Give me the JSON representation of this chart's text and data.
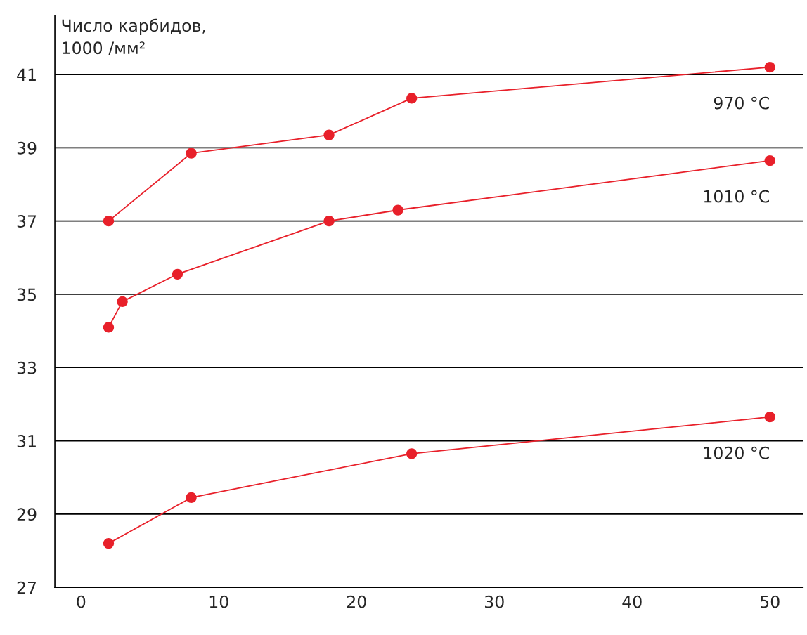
{
  "chart_data": {
    "type": "line",
    "ylabel": "Число карбидов,\n1000 /мм²",
    "series": [
      {
        "name": "970 °C",
        "color": "#e8202a",
        "x": [
          2,
          8,
          18,
          24,
          50
        ],
        "values": [
          37.0,
          38.85,
          39.35,
          40.35,
          41.2
        ]
      },
      {
        "name": "1010 °C",
        "color": "#e8202a",
        "x": [
          2,
          3,
          7,
          18,
          23,
          50
        ],
        "values": [
          34.1,
          34.8,
          35.55,
          37.0,
          37.3,
          38.65
        ]
      },
      {
        "name": "1020 °C",
        "color": "#e8202a",
        "x": [
          2,
          8,
          24,
          50
        ],
        "values": [
          28.2,
          29.45,
          30.65,
          31.65
        ]
      }
    ],
    "xlim": [
      -1.9,
      52.4
    ],
    "ylim": [
      27,
      42.6
    ],
    "xticks": [
      0,
      10,
      20,
      30,
      40,
      50
    ],
    "yticks": [
      27,
      29,
      31,
      33,
      35,
      37,
      39,
      41
    ],
    "grid": "y",
    "marker": "circle",
    "line_style": "solid",
    "legend": false
  }
}
